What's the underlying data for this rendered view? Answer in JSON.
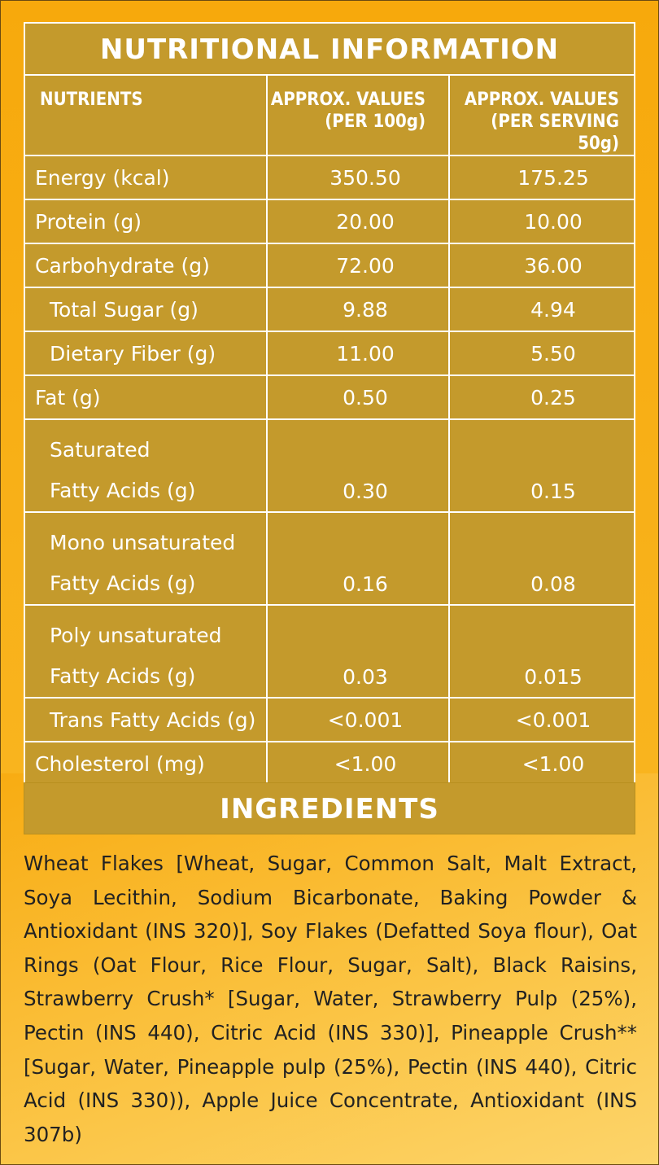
{
  "nutrition": {
    "title": "NUTRITIONAL INFORMATION",
    "headers": {
      "nutrients": "NUTRIENTS",
      "per100_line1": "APPROX. VALUES",
      "per100_line2": "(PER 100g)",
      "serving_line1": "APPROX. VALUES",
      "serving_line2": "(PER SERVING 50g)"
    },
    "rows": [
      {
        "name": "Energy (kcal)",
        "per100": "350.50",
        "serving": "175.25"
      },
      {
        "name": "Protein (g)",
        "per100": "20.00",
        "serving": "10.00"
      },
      {
        "name": "Carbohydrate (g)",
        "per100": "72.00",
        "serving": "36.00"
      },
      {
        "name": "Total Sugar (g)",
        "per100": "9.88",
        "serving": "4.94"
      },
      {
        "name": "Dietary Fiber (g)",
        "per100": "11.00",
        "serving": "5.50"
      },
      {
        "name": "Fat (g)",
        "per100": "0.50",
        "serving": "0.25"
      },
      {
        "name_line1": "Saturated",
        "name_line2": "Fatty Acids (g)",
        "per100": "0.30",
        "serving": "0.15"
      },
      {
        "name_line1": "Mono unsaturated",
        "name_line2": "Fatty Acids (g)",
        "per100": "0.16",
        "serving": "0.08"
      },
      {
        "name_line1": "Poly unsaturated",
        "name_line2": "Fatty Acids (g)",
        "per100": "0.03",
        "serving": "0.015"
      },
      {
        "name": "Trans Fatty Acids (g)",
        "per100": "<0.001",
        "serving": "<0.001"
      },
      {
        "name": "Cholesterol (mg)",
        "per100": "<1.00",
        "serving": "<1.00"
      }
    ]
  },
  "ingredients": {
    "title": "INGREDIENTS",
    "text": "Wheat Flakes [Wheat, Sugar, Common Salt, Malt Extract, Soya Lecithin, Sodium Bicarbonate, Baking Powder & Antioxidant (INS 320)], Soy Flakes (Defatted Soya flour), Oat Rings (Oat Flour, Rice Flour, Sugar, Salt), Black Raisins, Strawberry Crush* [Sugar, Water, Strawberry Pulp (25%), Pectin (INS 440), Citric Acid (INS 330)], Pineapple Crush** [Sugar, Water, Pineapple pulp (25%), Pectin (INS 440), Citric Acid (INS 330)), Apple Juice Concentrate, Antioxidant (INS 307b)"
  },
  "colors": {
    "background": "#f9b31c",
    "panel": "#c49a2c",
    "panel_text": "#ffffff",
    "body_text": "#222222"
  }
}
